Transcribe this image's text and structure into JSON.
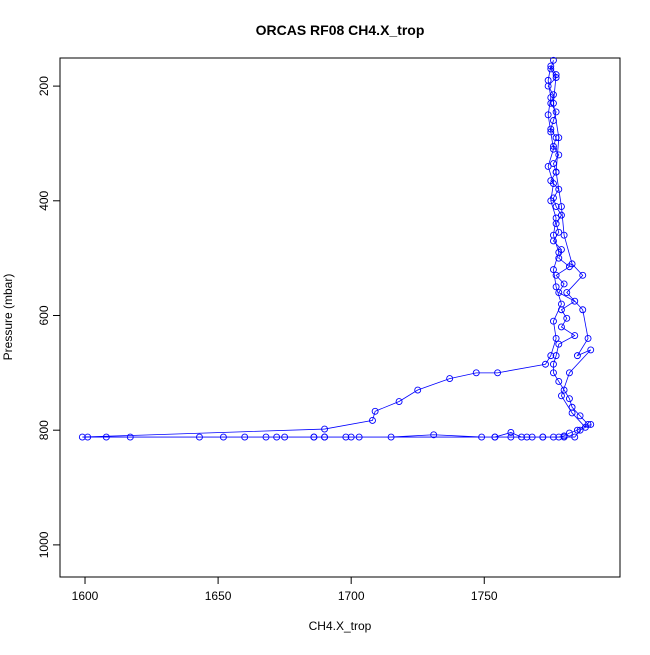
{
  "chart_data": {
    "type": "line",
    "title": "ORCAS RF08 CH4.X_trop",
    "x_label": "CH4.X_trop",
    "y_label": "Pressure (mbar)",
    "xlim": [
      1590.6,
      1801
    ],
    "ylim": [
      1056,
      151
    ],
    "xticks": [
      1600,
      1650,
      1700,
      1750
    ],
    "yticks": [
      200,
      400,
      600,
      800,
      1000
    ],
    "marker": "circle",
    "grid": false,
    "x": [
      1776,
      1775,
      1777,
      1774,
      1776,
      1775,
      1777,
      1776,
      1775,
      1777,
      1776,
      1778,
      1776,
      1777,
      1775,
      1778,
      1776,
      1777,
      1779,
      1777,
      1778,
      1776,
      1779,
      1778,
      1782,
      1777,
      1780,
      1778,
      1784,
      1779,
      1781,
      1779,
      1784,
      1778,
      1777,
      1776,
      1776,
      1778,
      1780,
      1782,
      1783,
      1786,
      1789,
      1785,
      1782,
      1780,
      1778,
      1772,
      1766,
      1760,
      1754,
      1700,
      1690,
      1686,
      1675,
      1668,
      1660,
      1652,
      1643,
      1617,
      1608,
      1601,
      1599,
      1690,
      1708,
      1709,
      1718,
      1725,
      1737,
      1747,
      1755,
      1773,
      1775,
      1777,
      1776,
      1779,
      1777,
      1776,
      1778,
      1776,
      1777,
      1775,
      1776,
      1774,
      1776,
      1775,
      1774,
      1775,
      1774,
      1775,
      1777,
      1776,
      1778,
      1777,
      1779,
      1780,
      1783,
      1787,
      1781,
      1787,
      1789,
      1785,
      1790,
      1782,
      1779,
      1783,
      1788,
      1790,
      1786,
      1784,
      1780,
      1776,
      1772,
      1768,
      1764,
      1760,
      1754,
      1749,
      1731,
      1715,
      1703,
      1698,
      1690,
      1686,
      1672
    ],
    "series": [
      {
        "name": "CH4.X_trop",
        "color": "#0000ff",
        "values": [
          155,
          170,
          185,
          200,
          215,
          230,
          245,
          260,
          275,
          290,
          305,
          320,
          335,
          350,
          365,
          380,
          395,
          410,
          425,
          440,
          455,
          470,
          485,
          500,
          515,
          530,
          545,
          560,
          575,
          590,
          605,
          620,
          635,
          650,
          670,
          685,
          700,
          715,
          730,
          745,
          760,
          775,
          790,
          800,
          805,
          810,
          812,
          812,
          812,
          812,
          812,
          812,
          812,
          812,
          812,
          812,
          812,
          812,
          812,
          812,
          812,
          812,
          812,
          798,
          783,
          767,
          750,
          730,
          710,
          700,
          700,
          685,
          670,
          640,
          610,
          580,
          550,
          520,
          490,
          460,
          430,
          400,
          370,
          340,
          310,
          280,
          250,
          220,
          190,
          165,
          180,
          230,
          290,
          350,
          410,
          460,
          510,
          530,
          560,
          590,
          640,
          670,
          660,
          700,
          740,
          770,
          795,
          790,
          800,
          812,
          812,
          812,
          812,
          812,
          812,
          804,
          812,
          812,
          808,
          812,
          812,
          812,
          812,
          812,
          812
        ]
      }
    ]
  }
}
